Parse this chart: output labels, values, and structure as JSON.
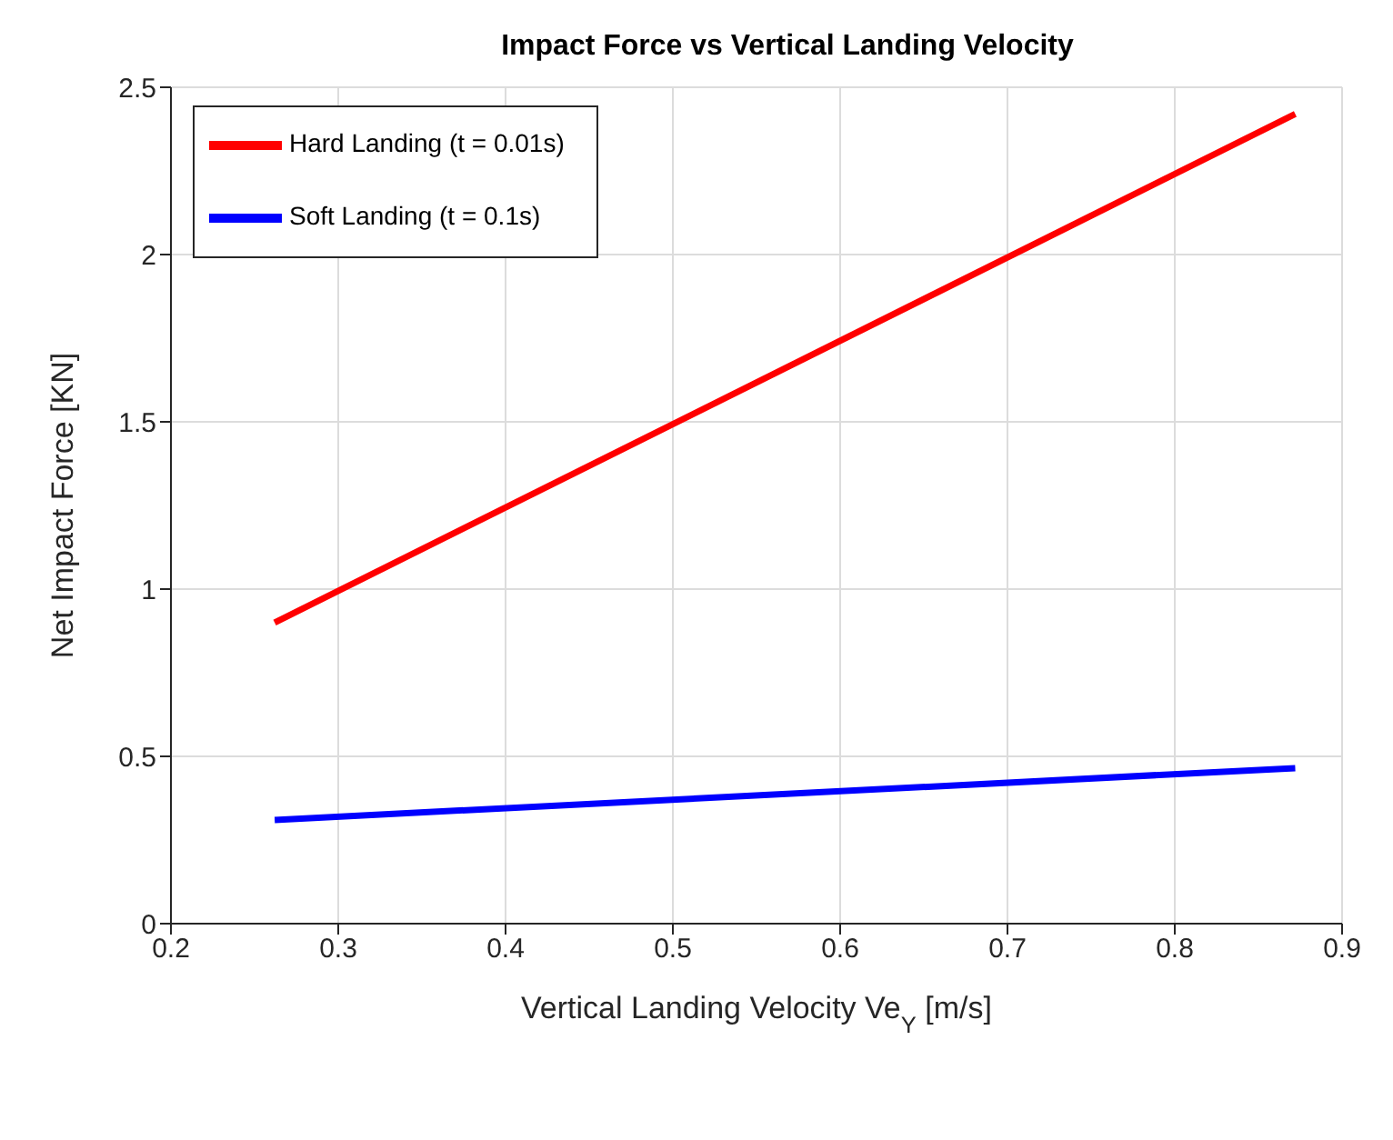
{
  "chart_data": {
    "type": "line",
    "title": "Impact Force vs Vertical Landing Velocity",
    "xlabel": "Vertical Landing Velocity Ve$_{Y}$ [m/s]",
    "ylabel": "Net Impact Force [KN]",
    "x": [
      0.262,
      0.872
    ],
    "series": [
      {
        "name": "Hard Landing (t = 0.01s)",
        "color": "#ff0000",
        "values": [
          0.9,
          2.42
        ]
      },
      {
        "name": "Soft Landing (t = 0.1s)",
        "color": "#0000ff",
        "values": [
          0.31,
          0.465
        ]
      }
    ],
    "xlim": [
      0.2,
      0.9
    ],
    "xticks": [
      0.2,
      0.3,
      0.4,
      0.5,
      0.6,
      0.7,
      0.8,
      0.9
    ],
    "ylim": [
      0,
      2.5
    ],
    "yticks": [
      0,
      0.5,
      1,
      1.5,
      2,
      2.5
    ],
    "grid": true,
    "legend": "top left",
    "marker": "none",
    "line_style": "solid"
  }
}
